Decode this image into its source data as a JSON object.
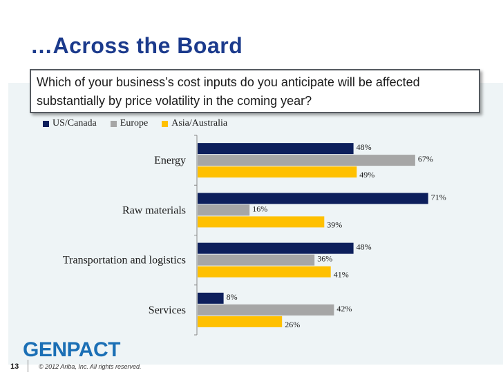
{
  "slide": {
    "title": "…Across the Board",
    "question": "Which of your business’s cost inputs do you anticipate will be affected substantially by price volatility in the coming year?",
    "page_number": "13",
    "copyright": "© 2012 Ariba, Inc. All rights reserved.",
    "logo_text": "GENPACT"
  },
  "colors": {
    "us_canada": "#0d1f5c",
    "europe": "#a6a6a6",
    "asia_australia": "#ffc000",
    "title": "#1b3a8c"
  },
  "chart_data": {
    "type": "bar",
    "orientation": "horizontal",
    "categories": [
      "Energy",
      "Raw materials",
      "Transportation and logistics",
      "Services"
    ],
    "series": [
      {
        "name": "US/Canada",
        "values": [
          48,
          71,
          48,
          8
        ],
        "labels": [
          "48%",
          "71%",
          "48%",
          "8%"
        ]
      },
      {
        "name": "Europe",
        "values": [
          67,
          16,
          36,
          42
        ],
        "labels": [
          "67%",
          "16%",
          "36%",
          "42%"
        ]
      },
      {
        "name": "Asia/Australia",
        "values": [
          49,
          39,
          41,
          26
        ],
        "labels": [
          "49%",
          "39%",
          "41%",
          "26%"
        ]
      }
    ],
    "xlim": [
      0,
      80
    ],
    "legend_position": "top",
    "grid": false
  }
}
